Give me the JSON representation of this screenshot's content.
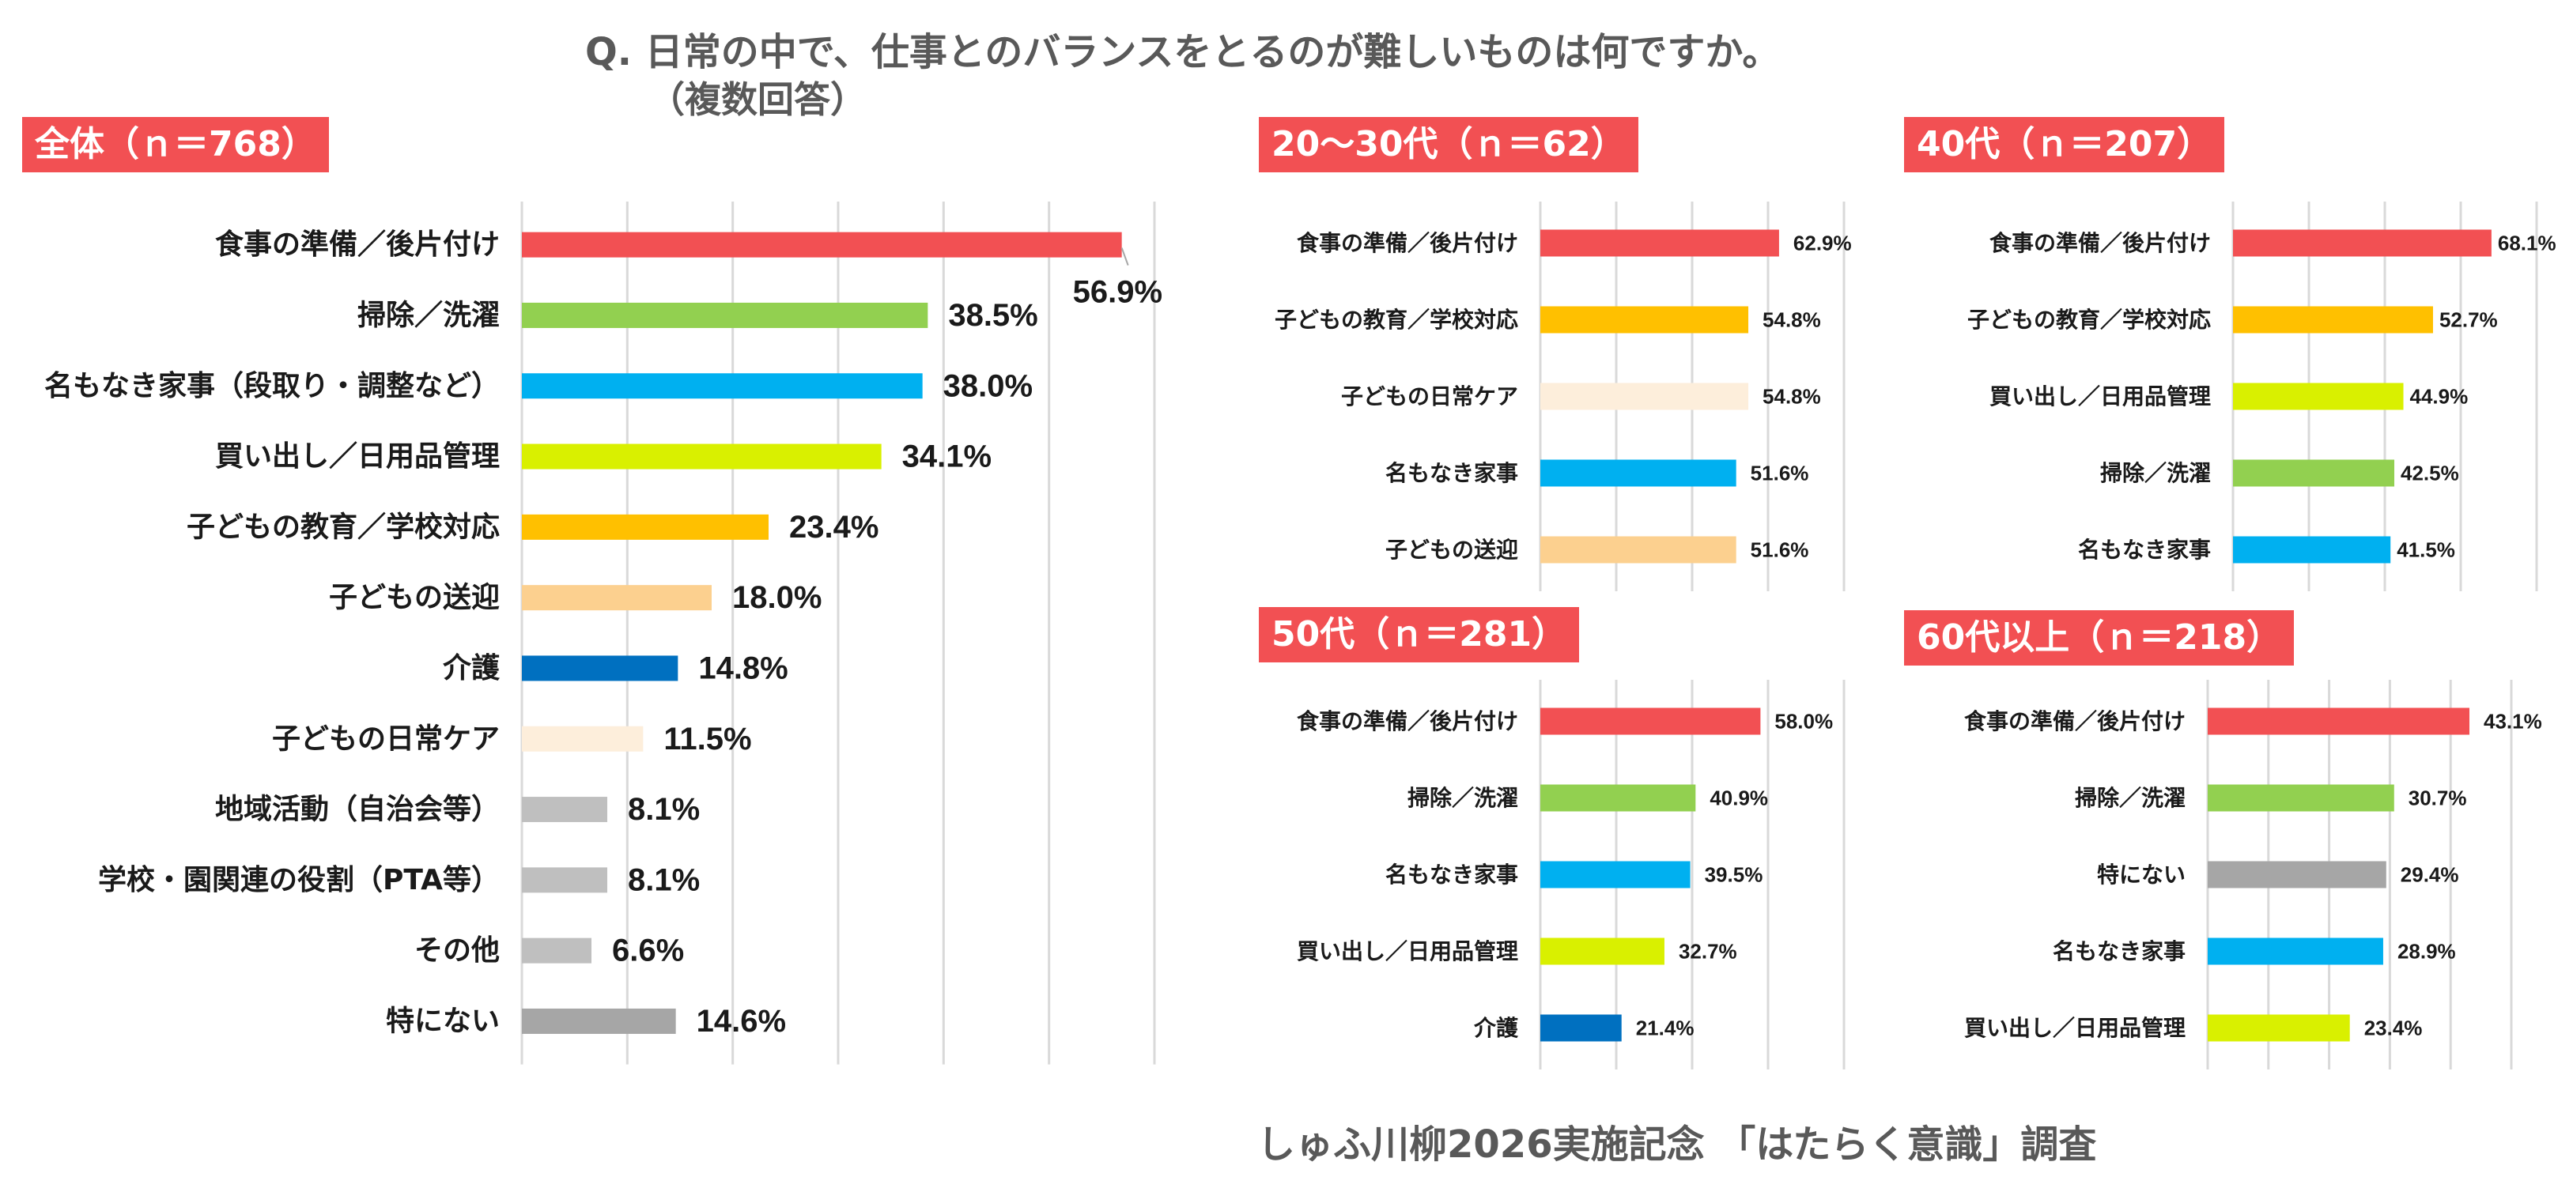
{
  "question": "Q.  日常の中で、仕事とのバランスをとるのが難しいものは何ですか。",
  "question_note": "（複数回答）",
  "footer": "しゅふ川柳2026実施記念 「はたらく意識」調査",
  "colors": {
    "title_bg": "#f25053",
    "meal": "#f25053",
    "cleaning": "#92d050",
    "chores": "#00b0f0",
    "shopping": "#d9f000",
    "education": "#ffc000",
    "pickup": "#fcd08f",
    "care": "#0070c0",
    "childcare": "#fdeedb",
    "local": "#bfbfbf",
    "school": "#bfbfbf",
    "other": "#bfbfbf",
    "none": "#a6a6a6"
  },
  "chart_data": [
    {
      "type": "bar",
      "orientation": "horizontal",
      "title": "全体（ｎ＝768）",
      "categories": [
        "食事の準備／後片付け",
        "掃除／洗濯",
        "名もなき家事（段取り・調整など）",
        "買い出し／日用品管理",
        "子どもの教育／学校対応",
        "子どもの送迎",
        "介護",
        "子どもの日常ケア",
        "地域活動（自治会等）",
        "学校・園関連の役割（PTA等）",
        "その他",
        "特にない"
      ],
      "values": [
        56.9,
        38.5,
        38.0,
        34.1,
        23.4,
        18.0,
        14.8,
        11.5,
        8.1,
        8.1,
        6.6,
        14.6
      ],
      "data_labels": [
        "56.9%",
        "38.5%",
        "38.0%",
        "34.1%",
        "23.4%",
        "18.0%",
        "14.8%",
        "11.5%",
        "8.1%",
        "8.1%",
        "6.6%",
        "14.6%"
      ],
      "colors": [
        "meal",
        "cleaning",
        "chores",
        "shopping",
        "education",
        "pickup",
        "care",
        "childcare",
        "local",
        "school",
        "other",
        "none"
      ],
      "xlim": [
        0,
        60
      ],
      "grid": true
    },
    {
      "type": "bar",
      "orientation": "horizontal",
      "title": "20～30代（ｎ＝62）",
      "categories": [
        "食事の準備／後片付け",
        "子どもの教育／学校対応",
        "子どもの日常ケア",
        "名もなき家事",
        "子どもの送迎"
      ],
      "values": [
        62.9,
        54.8,
        54.8,
        51.6,
        51.6
      ],
      "data_labels": [
        "62.9%",
        "54.8%",
        "54.8%",
        "51.6%",
        "51.6%"
      ],
      "colors": [
        "meal",
        "education",
        "childcare",
        "chores",
        "pickup"
      ],
      "xlim": [
        0,
        80
      ],
      "grid": true
    },
    {
      "type": "bar",
      "orientation": "horizontal",
      "title": "40代（ｎ＝207）",
      "categories": [
        "食事の準備／後片付け",
        "子どもの教育／学校対応",
        "買い出し／日用品管理",
        "掃除／洗濯",
        "名もなき家事"
      ],
      "values": [
        68.1,
        52.7,
        44.9,
        42.5,
        41.5
      ],
      "data_labels": [
        "68.1%",
        "52.7%",
        "44.9%",
        "42.5%",
        "41.5%"
      ],
      "colors": [
        "meal",
        "education",
        "shopping",
        "cleaning",
        "chores"
      ],
      "xlim": [
        0,
        80
      ],
      "grid": true
    },
    {
      "type": "bar",
      "orientation": "horizontal",
      "title": "50代（ｎ＝281）",
      "categories": [
        "食事の準備／後片付け",
        "掃除／洗濯",
        "名もなき家事",
        "買い出し／日用品管理",
        "介護"
      ],
      "values": [
        58.0,
        40.9,
        39.5,
        32.7,
        21.4
      ],
      "data_labels": [
        "58.0%",
        "40.9%",
        "39.5%",
        "32.7%",
        "21.4%"
      ],
      "colors": [
        "meal",
        "cleaning",
        "chores",
        "shopping",
        "care"
      ],
      "xlim": [
        0,
        80
      ],
      "grid": true
    },
    {
      "type": "bar",
      "orientation": "horizontal",
      "title": "60代以上（ｎ＝218）",
      "categories": [
        "食事の準備／後片付け",
        "掃除／洗濯",
        "特にない",
        "名もなき家事",
        "買い出し／日用品管理"
      ],
      "values": [
        43.1,
        30.7,
        29.4,
        28.9,
        23.4
      ],
      "data_labels": [
        "43.1%",
        "30.7%",
        "29.4%",
        "28.9%",
        "23.4%"
      ],
      "colors": [
        "meal",
        "cleaning",
        "none",
        "chores",
        "shopping"
      ],
      "xlim": [
        0,
        50
      ],
      "grid": true
    }
  ]
}
